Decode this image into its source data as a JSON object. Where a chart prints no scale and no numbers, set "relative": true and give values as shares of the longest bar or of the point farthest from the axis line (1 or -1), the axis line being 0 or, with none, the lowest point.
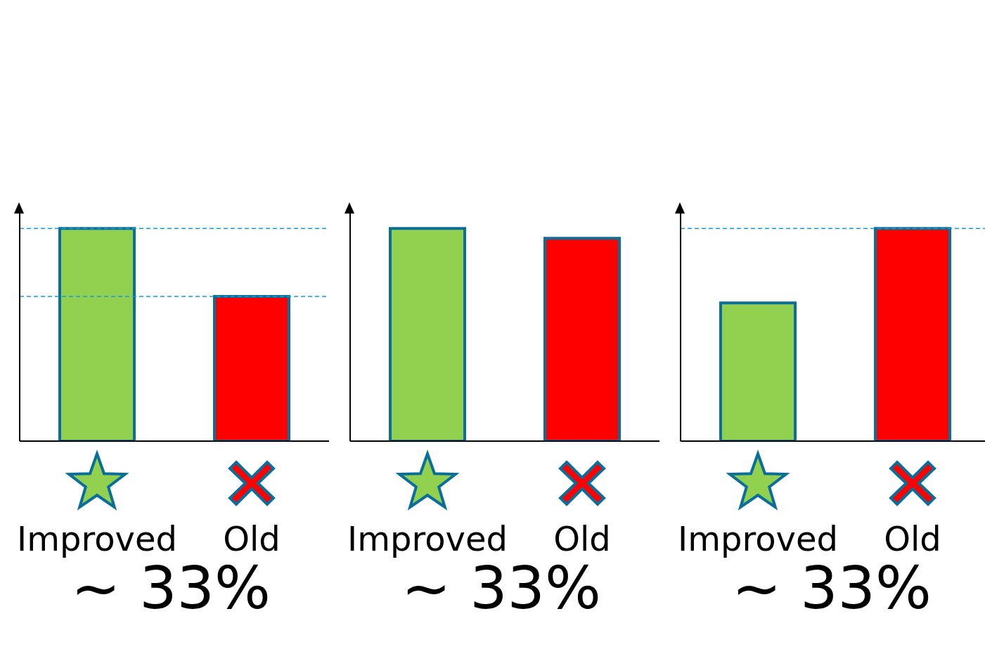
{
  "chart_data": [
    {
      "type": "bar",
      "relative": true,
      "categories": [
        "Improved",
        "Old"
      ],
      "values": [
        1,
        0.68
      ],
      "colors": [
        "#92d050",
        "#ff0000"
      ],
      "ref_lines": [
        {
          "axis": "y",
          "value": 1,
          "color": "#1a9bd7",
          "line_style": "dashed"
        },
        {
          "axis": "y",
          "value": 0.68,
          "color": "#1a9bd7",
          "line_style": "dashed"
        }
      ],
      "annotations": [
        "~ 33%"
      ]
    },
    {
      "type": "bar",
      "relative": true,
      "categories": [
        "Improved",
        "Old"
      ],
      "values": [
        1,
        0.954
      ],
      "colors": [
        "#92d050",
        "#ff0000"
      ],
      "annotations": [
        "~ 33%"
      ]
    },
    {
      "type": "bar",
      "relative": true,
      "categories": [
        "Improved",
        "Old"
      ],
      "values": [
        0.65,
        1
      ],
      "colors": [
        "#92d050",
        "#ff0000"
      ],
      "ref_lines": [
        {
          "axis": "y",
          "value": 1,
          "color": "#1a9bd7",
          "line_style": "dashed"
        }
      ],
      "annotations": [
        "~ 33%"
      ]
    }
  ]
}
